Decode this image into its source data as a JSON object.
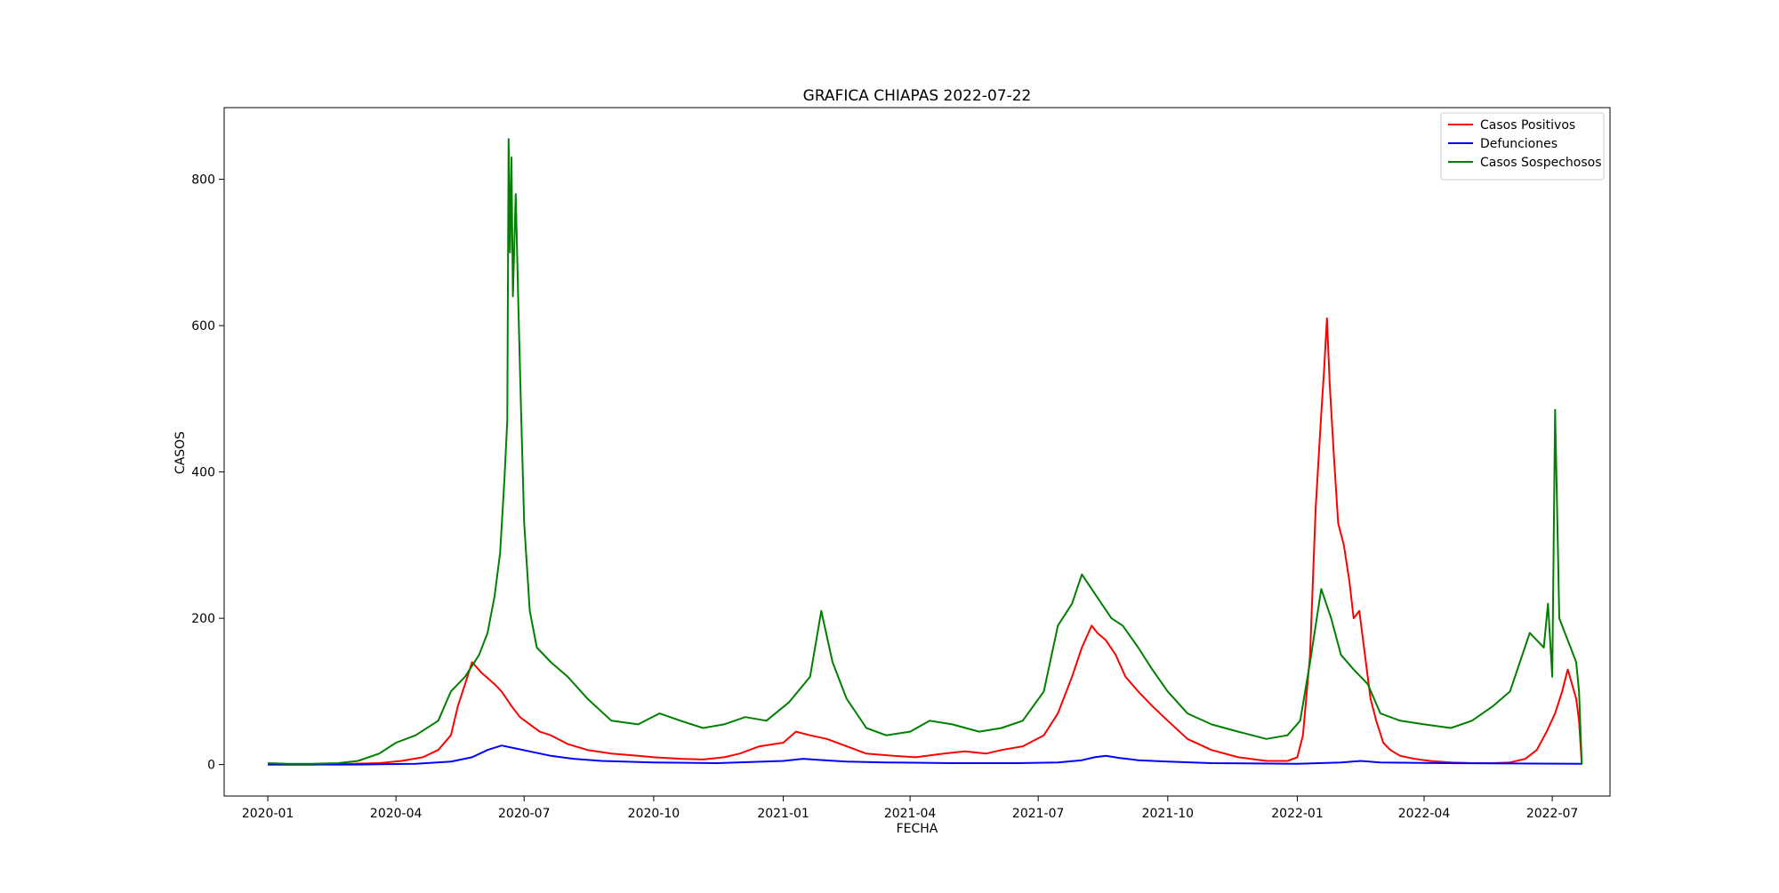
{
  "chart_data": {
    "type": "line",
    "title": "GRAFICA CHIAPAS 2022-07-22",
    "xlabel": "FECHA",
    "ylabel": "CASOS",
    "xlim": [
      "2019-12-01",
      "2022-08-11"
    ],
    "ylim": [
      -43,
      898
    ],
    "x_ticks": [
      "2020-01",
      "2020-04",
      "2020-07",
      "2020-10",
      "2021-01",
      "2021-04",
      "2021-07",
      "2021-10",
      "2022-01",
      "2022-04",
      "2022-07"
    ],
    "y_ticks": [
      0,
      200,
      400,
      600,
      800
    ],
    "grid": false,
    "legend": "top-right",
    "series": [
      {
        "name": "Casos Positivos",
        "color": "#ff0000",
        "x": [
          "2020-01-01",
          "2020-02-01",
          "2020-03-01",
          "2020-03-20",
          "2020-04-05",
          "2020-04-20",
          "2020-05-01",
          "2020-05-10",
          "2020-05-15",
          "2020-05-20",
          "2020-05-25",
          "2020-06-01",
          "2020-06-10",
          "2020-06-15",
          "2020-06-22",
          "2020-06-28",
          "2020-07-05",
          "2020-07-12",
          "2020-07-20",
          "2020-08-01",
          "2020-08-15",
          "2020-09-01",
          "2020-09-20",
          "2020-10-01",
          "2020-10-20",
          "2020-11-05",
          "2020-11-20",
          "2020-12-01",
          "2020-12-15",
          "2021-01-01",
          "2021-01-10",
          "2021-01-20",
          "2021-02-01",
          "2021-02-15",
          "2021-03-01",
          "2021-03-20",
          "2021-04-05",
          "2021-04-25",
          "2021-05-10",
          "2021-05-25",
          "2021-06-05",
          "2021-06-20",
          "2021-07-05",
          "2021-07-15",
          "2021-07-25",
          "2021-08-01",
          "2021-08-08",
          "2021-08-12",
          "2021-08-18",
          "2021-08-25",
          "2021-09-01",
          "2021-09-10",
          "2021-09-20",
          "2021-10-01",
          "2021-10-15",
          "2021-11-01",
          "2021-11-20",
          "2021-12-10",
          "2021-12-25",
          "2022-01-01",
          "2022-01-05",
          "2022-01-10",
          "2022-01-14",
          "2022-01-18",
          "2022-01-20",
          "2022-01-22",
          "2022-01-24",
          "2022-01-27",
          "2022-01-30",
          "2022-02-03",
          "2022-02-07",
          "2022-02-10",
          "2022-02-14",
          "2022-02-18",
          "2022-02-22",
          "2022-02-26",
          "2022-03-03",
          "2022-03-08",
          "2022-03-15",
          "2022-03-25",
          "2022-04-05",
          "2022-04-20",
          "2022-05-05",
          "2022-05-20",
          "2022-06-01",
          "2022-06-12",
          "2022-06-20",
          "2022-06-27",
          "2022-07-03",
          "2022-07-08",
          "2022-07-12",
          "2022-07-15",
          "2022-07-18",
          "2022-07-20",
          "2022-07-22"
        ],
        "y": [
          0,
          0,
          1,
          2,
          5,
          10,
          20,
          40,
          80,
          110,
          140,
          125,
          110,
          100,
          80,
          65,
          55,
          45,
          40,
          28,
          20,
          15,
          12,
          10,
          8,
          7,
          10,
          15,
          25,
          30,
          45,
          40,
          35,
          25,
          15,
          12,
          10,
          15,
          18,
          15,
          20,
          25,
          40,
          70,
          120,
          160,
          190,
          180,
          170,
          150,
          120,
          100,
          80,
          60,
          35,
          20,
          10,
          5,
          5,
          10,
          40,
          150,
          350,
          480,
          540,
          610,
          520,
          420,
          330,
          300,
          250,
          200,
          210,
          150,
          90,
          60,
          30,
          20,
          12,
          8,
          5,
          3,
          2,
          2,
          3,
          8,
          20,
          45,
          70,
          100,
          130,
          110,
          90,
          60,
          0
        ]
      },
      {
        "name": "Defunciones",
        "color": "#0000ff",
        "x": [
          "2020-01-01",
          "2020-03-01",
          "2020-04-15",
          "2020-05-10",
          "2020-05-25",
          "2020-06-05",
          "2020-06-15",
          "2020-06-25",
          "2020-07-05",
          "2020-07-20",
          "2020-08-05",
          "2020-08-25",
          "2020-10-01",
          "2020-11-15",
          "2021-01-01",
          "2021-01-15",
          "2021-01-30",
          "2021-02-15",
          "2021-03-15",
          "2021-05-01",
          "2021-06-15",
          "2021-07-15",
          "2021-08-01",
          "2021-08-10",
          "2021-08-18",
          "2021-08-28",
          "2021-09-10",
          "2021-10-01",
          "2021-11-01",
          "2022-01-01",
          "2022-02-01",
          "2022-02-15",
          "2022-03-01",
          "2022-04-15",
          "2022-07-22"
        ],
        "y": [
          0,
          0,
          1,
          4,
          10,
          20,
          26,
          22,
          18,
          12,
          8,
          5,
          3,
          2,
          5,
          8,
          6,
          4,
          3,
          2,
          2,
          3,
          6,
          10,
          12,
          9,
          6,
          4,
          2,
          1,
          3,
          5,
          3,
          2,
          1
        ]
      },
      {
        "name": "Casos Sospechosos",
        "color": "#008000",
        "x": [
          "2020-01-01",
          "2020-01-15",
          "2020-02-01",
          "2020-02-20",
          "2020-03-05",
          "2020-03-20",
          "2020-04-01",
          "2020-04-15",
          "2020-05-01",
          "2020-05-10",
          "2020-05-20",
          "2020-05-30",
          "2020-06-05",
          "2020-06-10",
          "2020-06-14",
          "2020-06-17",
          "2020-06-19",
          "2020-06-20",
          "2020-06-21",
          "2020-06-22",
          "2020-06-23",
          "2020-06-25",
          "2020-06-27",
          "2020-06-29",
          "2020-07-01",
          "2020-07-05",
          "2020-07-10",
          "2020-07-20",
          "2020-08-01",
          "2020-08-15",
          "2020-09-01",
          "2020-09-20",
          "2020-10-05",
          "2020-10-20",
          "2020-11-05",
          "2020-11-20",
          "2020-12-05",
          "2020-12-20",
          "2021-01-05",
          "2021-01-20",
          "2021-01-28",
          "2021-02-05",
          "2021-02-15",
          "2021-03-01",
          "2021-03-15",
          "2021-04-01",
          "2021-04-15",
          "2021-05-01",
          "2021-05-20",
          "2021-06-05",
          "2021-06-20",
          "2021-07-05",
          "2021-07-15",
          "2021-07-25",
          "2021-08-01",
          "2021-08-08",
          "2021-08-15",
          "2021-08-22",
          "2021-08-30",
          "2021-09-10",
          "2021-09-20",
          "2021-10-01",
          "2021-10-15",
          "2021-11-01",
          "2021-11-20",
          "2021-12-10",
          "2021-12-25",
          "2022-01-03",
          "2022-01-10",
          "2022-01-18",
          "2022-01-25",
          "2022-02-01",
          "2022-02-10",
          "2022-02-20",
          "2022-03-01",
          "2022-03-15",
          "2022-04-01",
          "2022-04-20",
          "2022-05-05",
          "2022-05-20",
          "2022-06-01",
          "2022-06-08",
          "2022-06-15",
          "2022-06-20",
          "2022-06-25",
          "2022-06-28",
          "2022-07-01",
          "2022-07-03",
          "2022-07-06",
          "2022-07-10",
          "2022-07-14",
          "2022-07-18",
          "2022-07-20",
          "2022-07-22"
        ],
        "y": [
          2,
          1,
          1,
          2,
          5,
          15,
          30,
          40,
          60,
          100,
          120,
          150,
          180,
          230,
          290,
          390,
          470,
          855,
          700,
          830,
          640,
          780,
          620,
          470,
          330,
          210,
          160,
          140,
          120,
          90,
          60,
          55,
          70,
          60,
          50,
          55,
          65,
          60,
          85,
          120,
          210,
          140,
          90,
          50,
          40,
          45,
          60,
          55,
          45,
          50,
          60,
          100,
          190,
          220,
          260,
          240,
          220,
          200,
          190,
          160,
          130,
          100,
          70,
          55,
          45,
          35,
          40,
          60,
          140,
          240,
          200,
          150,
          130,
          110,
          70,
          60,
          55,
          50,
          60,
          80,
          100,
          140,
          180,
          170,
          160,
          220,
          120,
          485,
          200,
          180,
          160,
          140,
          100,
          0
        ]
      }
    ]
  }
}
